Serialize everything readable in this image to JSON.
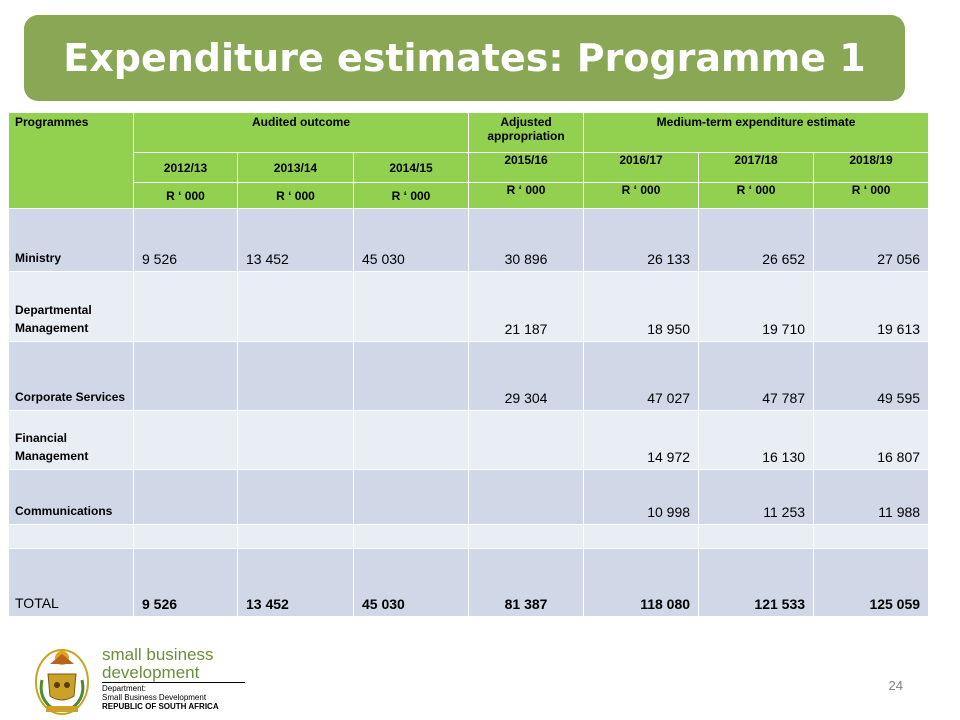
{
  "title": "Expenditure estimates: Programme 1",
  "table": {
    "header": {
      "programmes": "Programmes",
      "audited": "Audited outcome",
      "adjusted": "Adjusted appropriation",
      "medium": "Medium-term expenditure estimate",
      "years": [
        "2012/13",
        "2013/14",
        "2014/15",
        "2015/16",
        "2016/17",
        "2017/18",
        "2018/19"
      ],
      "units": [
        "R ‘ 000",
        "R ‘ 000",
        "R ‘ 000",
        "R ‘ 000",
        "R ‘ 000",
        "R ‘ 000",
        "R ‘ 000"
      ]
    },
    "rows": [
      {
        "label": "Ministry",
        "values": [
          "9 526",
          "13 452",
          "45 030",
          "30 896",
          "26 133",
          "26 652",
          "27 056"
        ]
      },
      {
        "label": "Departmental Management",
        "values": [
          "",
          "",
          "",
          "21 187",
          "18 950",
          "19 710",
          "19 613"
        ]
      },
      {
        "label": "Corporate Services",
        "values": [
          "",
          "",
          "",
          "29 304",
          "47 027",
          "47 787",
          "49 595"
        ]
      },
      {
        "label": "Financial Management",
        "values": [
          "",
          "",
          "",
          "",
          "14 972",
          "16 130",
          "16 807"
        ]
      },
      {
        "label": "Communications",
        "values": [
          "",
          "",
          "",
          "",
          "10 998",
          "11 253",
          "11 988"
        ]
      },
      {
        "label": "",
        "values": [
          "",
          "",
          "",
          "",
          "",
          "",
          ""
        ]
      },
      {
        "label": "TOTAL",
        "values": [
          "9 526",
          "13 452",
          "45 030",
          "81 387",
          "118 080",
          "121 533",
          "125 059"
        ]
      }
    ]
  },
  "logo": {
    "line1": "small business",
    "line2": "development",
    "dept": "Department:",
    "dept_name": "Small Business Development",
    "country": "REPUBLIC OF SOUTH AFRICA"
  },
  "page_number": "24",
  "colors": {
    "banner": "#8aa756",
    "header": "#92d050",
    "row_dark": "#d0d8e8",
    "row_light": "#e9edf4"
  }
}
